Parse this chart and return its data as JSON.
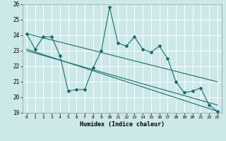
{
  "title": "",
  "xlabel": "Humidex (Indice chaleur)",
  "ylabel": "",
  "xlim": [
    -0.5,
    23.5
  ],
  "ylim": [
    19,
    26
  ],
  "yticks": [
    19,
    20,
    21,
    22,
    23,
    24,
    25,
    26
  ],
  "xticks": [
    0,
    1,
    2,
    3,
    4,
    5,
    6,
    7,
    8,
    9,
    10,
    11,
    12,
    13,
    14,
    15,
    16,
    17,
    18,
    19,
    20,
    21,
    22,
    23
  ],
  "bg_color": "#cce8e8",
  "grid_color": "#ffffff",
  "line_color": "#1a6e6e",
  "series1": {
    "x": [
      0,
      1,
      2,
      3,
      4,
      5,
      6,
      7,
      8,
      9,
      10,
      11,
      12,
      13,
      14,
      15,
      16,
      17,
      18,
      19,
      20,
      21,
      22,
      23
    ],
    "y": [
      24.1,
      23.1,
      23.9,
      23.9,
      22.7,
      20.4,
      20.5,
      20.5,
      21.9,
      23.0,
      25.8,
      23.5,
      23.3,
      23.9,
      23.1,
      22.9,
      23.3,
      22.5,
      21.0,
      20.3,
      20.4,
      20.6,
      19.5,
      19.1
    ]
  },
  "series2": {
    "x": [
      0,
      23
    ],
    "y": [
      24.1,
      21.0
    ]
  },
  "series3": {
    "x": [
      0,
      23
    ],
    "y": [
      23.0,
      19.5
    ]
  },
  "series4": {
    "x": [
      0,
      23
    ],
    "y": [
      23.1,
      19.1
    ]
  }
}
